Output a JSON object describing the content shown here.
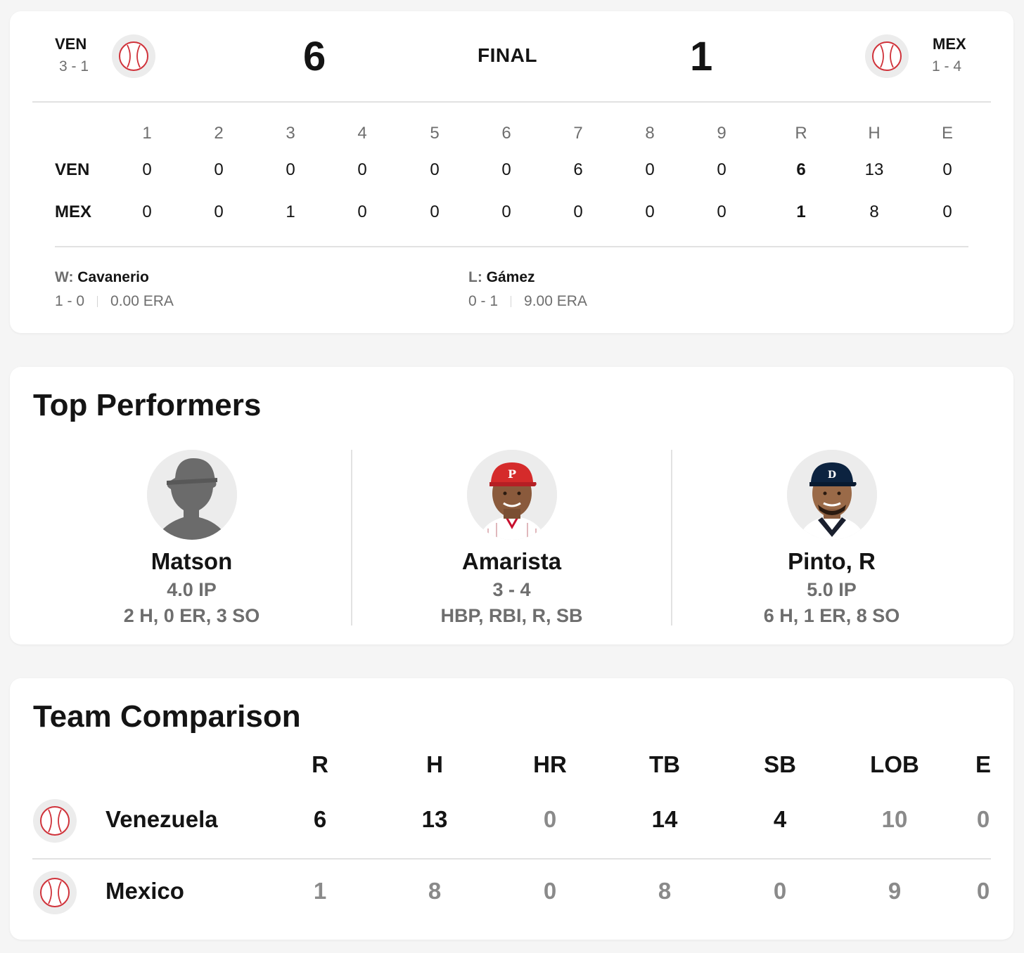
{
  "game": {
    "away": {
      "abbr": "VEN",
      "record": "3 - 1",
      "score": "6",
      "logo": "baseball-icon"
    },
    "home": {
      "abbr": "MEX",
      "record": "1 - 4",
      "score": "1",
      "logo": "baseball-icon"
    },
    "status": "FINAL"
  },
  "linescore": {
    "headers": [
      "1",
      "2",
      "3",
      "4",
      "5",
      "6",
      "7",
      "8",
      "9",
      "R",
      "H",
      "E"
    ],
    "rows": [
      {
        "team": "VEN",
        "values": [
          "0",
          "0",
          "0",
          "0",
          "0",
          "0",
          "6",
          "0",
          "0",
          "6",
          "13",
          "0"
        ]
      },
      {
        "team": "MEX",
        "values": [
          "0",
          "0",
          "1",
          "0",
          "0",
          "0",
          "0",
          "0",
          "0",
          "1",
          "8",
          "0"
        ]
      }
    ]
  },
  "decisions": {
    "win": {
      "prefix": "W:",
      "name": "Cavanerio",
      "record": "1 - 0",
      "era": "0.00 ERA"
    },
    "loss": {
      "prefix": "L:",
      "name": "Gámez",
      "record": "0 - 1",
      "era": "9.00 ERA"
    }
  },
  "top_performers": {
    "title": "Top Performers",
    "players": [
      {
        "name": "Matson",
        "line1": "4.0 IP",
        "line2": "2 H, 0 ER, 3 SO",
        "photo": "silhouette"
      },
      {
        "name": "Amarista",
        "line1": "3 - 4",
        "line2": "HBP, RBI, R, SB",
        "photo": "red-cap-player"
      },
      {
        "name": "Pinto, R",
        "line1": "5.0 IP",
        "line2": "6 H, 1 ER, 8 SO",
        "photo": "navy-cap-player"
      }
    ]
  },
  "team_comparison": {
    "title": "Team Comparison",
    "headers": [
      "R",
      "H",
      "HR",
      "TB",
      "SB",
      "LOB",
      "E"
    ],
    "rows": [
      {
        "team": "Venezuela",
        "values": [
          "6",
          "13",
          "0",
          "14",
          "4",
          "10",
          "0"
        ],
        "dim": [
          false,
          false,
          true,
          false,
          false,
          true,
          true
        ]
      },
      {
        "team": "Mexico",
        "values": [
          "1",
          "8",
          "0",
          "8",
          "0",
          "9",
          "0"
        ],
        "dim": [
          true,
          true,
          true,
          true,
          true,
          true,
          true
        ]
      }
    ]
  },
  "colors": {
    "text": "#141414",
    "muted": "#6e6e6e",
    "stitch": "#d0323a",
    "background": "#f5f5f5"
  }
}
